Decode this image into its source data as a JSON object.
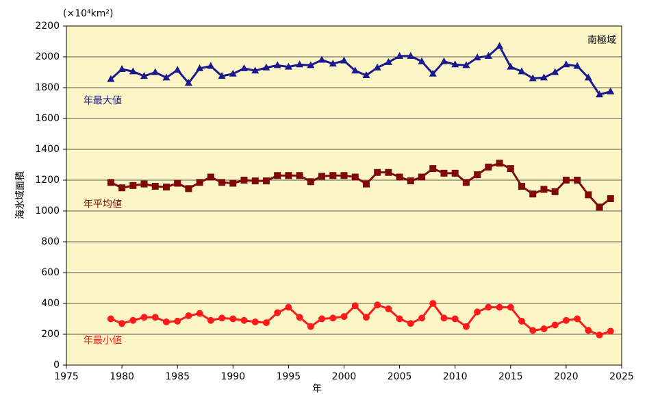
{
  "chart_data": {
    "type": "line",
    "unit_label": "(×10⁴km²)",
    "region_label": "南極域",
    "x_label": "年",
    "y_label": "海氷域面積",
    "x": [
      1979,
      1980,
      1981,
      1982,
      1983,
      1984,
      1985,
      1986,
      1987,
      1988,
      1989,
      1990,
      1991,
      1992,
      1993,
      1994,
      1995,
      1996,
      1997,
      1998,
      1999,
      2000,
      2001,
      2002,
      2003,
      2004,
      2005,
      2006,
      2007,
      2008,
      2009,
      2010,
      2011,
      2012,
      2013,
      2014,
      2015,
      2016,
      2017,
      2018,
      2019,
      2020,
      2021,
      2022,
      2023,
      2024
    ],
    "series": [
      {
        "name": "年最大値",
        "color": "#1a1a8c",
        "marker": "triangle",
        "values": [
          1855,
          1920,
          1905,
          1875,
          1900,
          1865,
          1915,
          1830,
          1925,
          1940,
          1875,
          1890,
          1925,
          1910,
          1930,
          1945,
          1935,
          1950,
          1945,
          1980,
          1955,
          1975,
          1910,
          1880,
          1930,
          1965,
          2005,
          2005,
          1970,
          1890,
          1970,
          1950,
          1945,
          1995,
          2005,
          2070,
          1935,
          1905,
          1860,
          1865,
          1900,
          1950,
          1940,
          1865,
          1755,
          1775
        ]
      },
      {
        "name": "年平均値",
        "color": "#7f0a0a",
        "marker": "square",
        "values": [
          1185,
          1150,
          1165,
          1175,
          1160,
          1155,
          1180,
          1145,
          1185,
          1220,
          1185,
          1180,
          1200,
          1195,
          1195,
          1230,
          1230,
          1230,
          1190,
          1225,
          1230,
          1230,
          1220,
          1175,
          1250,
          1250,
          1220,
          1195,
          1220,
          1275,
          1245,
          1245,
          1185,
          1235,
          1285,
          1310,
          1275,
          1160,
          1110,
          1140,
          1125,
          1200,
          1200,
          1105,
          1025,
          1080
        ]
      },
      {
        "name": "年最小値",
        "color": "#ff1a1a",
        "marker": "circle",
        "values": [
          300,
          270,
          290,
          310,
          310,
          280,
          285,
          320,
          335,
          290,
          305,
          300,
          290,
          280,
          275,
          340,
          375,
          310,
          250,
          300,
          305,
          315,
          385,
          310,
          390,
          365,
          300,
          270,
          305,
          400,
          305,
          300,
          250,
          345,
          375,
          375,
          375,
          285,
          225,
          235,
          260,
          290,
          300,
          225,
          195,
          220
        ]
      }
    ],
    "xlim": [
      1975,
      2025
    ],
    "xticks": [
      1975,
      1980,
      1985,
      1990,
      1995,
      2000,
      2005,
      2010,
      2015,
      2020,
      2025
    ],
    "ylim": [
      0,
      2200
    ],
    "yticks": [
      0,
      200,
      400,
      600,
      800,
      1000,
      1200,
      1400,
      1600,
      1800,
      2000,
      2200
    ],
    "grid": true,
    "background": "#fcf6c6"
  }
}
